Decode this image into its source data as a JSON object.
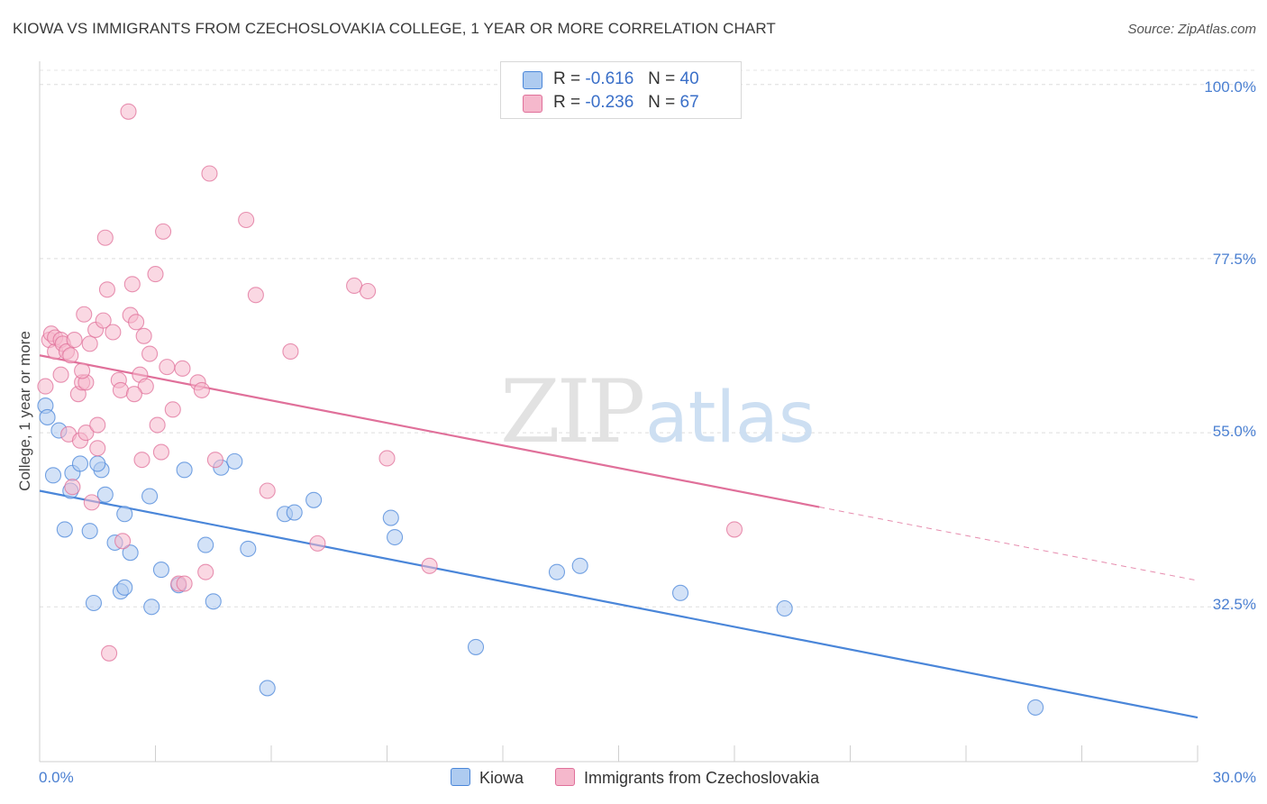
{
  "chart_data": {
    "type": "scatter",
    "title": "KIOWA VS IMMIGRANTS FROM CZECHOSLOVAKIA COLLEGE, 1 YEAR OR MORE CORRELATION CHART",
    "source": "Source: ZipAtlas.com",
    "ylabel": "College, 1 year or more",
    "xlabel": "",
    "x_unit": "%",
    "xlim": [
      0,
      30
    ],
    "ylim": [
      12.5,
      103
    ],
    "y_ticks": [
      100.0,
      77.5,
      55.0,
      32.5
    ],
    "y_tick_labels": [
      "100.0%",
      "77.5%",
      "55.0%",
      "32.5%"
    ],
    "x_tick_labels": [
      "0.0%",
      "30.0%"
    ],
    "watermark": {
      "zip": "ZIP",
      "atlas": "atlas"
    },
    "legend": [
      {
        "r_label": "R =",
        "r_value": "-0.616",
        "n_label": "N =",
        "n_value": "40"
      },
      {
        "r_label": "R =",
        "r_value": "-0.236",
        "n_label": "N =",
        "n_value": "67"
      }
    ],
    "series": [
      {
        "name": "Kiowa",
        "color": "#4a86d9",
        "fill": "#aecbf0",
        "trend": {
          "x0": 0.0,
          "y0": 47.5,
          "x1": 30.0,
          "y1": 18.2
        },
        "points": [
          [
            0.15,
            58.5
          ],
          [
            0.2,
            57.0
          ],
          [
            0.5,
            55.3
          ],
          [
            0.35,
            49.5
          ],
          [
            0.65,
            42.5
          ],
          [
            0.8,
            47.5
          ],
          [
            0.85,
            49.8
          ],
          [
            1.05,
            51.0
          ],
          [
            1.3,
            42.3
          ],
          [
            1.4,
            33.0
          ],
          [
            1.6,
            50.2
          ],
          [
            1.5,
            51.0
          ],
          [
            1.7,
            47.0
          ],
          [
            1.95,
            40.8
          ],
          [
            2.2,
            44.5
          ],
          [
            2.35,
            39.5
          ],
          [
            2.1,
            34.5
          ],
          [
            2.9,
            32.5
          ],
          [
            2.85,
            46.8
          ],
          [
            3.15,
            37.3
          ],
          [
            3.6,
            35.3
          ],
          [
            3.75,
            50.2
          ],
          [
            4.3,
            40.5
          ],
          [
            4.5,
            33.2
          ],
          [
            4.7,
            50.5
          ],
          [
            5.05,
            51.3
          ],
          [
            5.4,
            40.0
          ],
          [
            5.9,
            22.0
          ],
          [
            6.35,
            44.5
          ],
          [
            6.6,
            44.7
          ],
          [
            7.1,
            46.3
          ],
          [
            9.1,
            44.0
          ],
          [
            9.2,
            41.5
          ],
          [
            11.3,
            27.3
          ],
          [
            13.4,
            37.0
          ],
          [
            14.0,
            37.8
          ],
          [
            16.6,
            34.3
          ],
          [
            19.3,
            32.3
          ],
          [
            25.8,
            19.5
          ],
          [
            2.2,
            35.0
          ]
        ]
      },
      {
        "name": "Immigrants from Czechoslovakia",
        "color": "#e0709a",
        "fill": "#f5b8cc",
        "trend": {
          "x0": 0.0,
          "y0": 65.0,
          "x1": 20.2,
          "y1": 45.4
        },
        "trend_dash": {
          "x0": 20.2,
          "y0": 45.4,
          "x1": 30.0,
          "y1": 35.9
        },
        "points": [
          [
            0.15,
            61.0
          ],
          [
            0.25,
            67.0
          ],
          [
            0.3,
            67.8
          ],
          [
            0.4,
            65.5
          ],
          [
            0.4,
            67.3
          ],
          [
            0.55,
            67.0
          ],
          [
            0.55,
            62.5
          ],
          [
            0.6,
            66.5
          ],
          [
            0.7,
            65.5
          ],
          [
            0.75,
            54.8
          ],
          [
            0.8,
            65.0
          ],
          [
            0.85,
            48.0
          ],
          [
            0.9,
            67.0
          ],
          [
            1.0,
            60.0
          ],
          [
            1.05,
            54.0
          ],
          [
            1.1,
            61.5
          ],
          [
            1.2,
            61.5
          ],
          [
            1.1,
            63.0
          ],
          [
            1.15,
            70.3
          ],
          [
            1.2,
            55.0
          ],
          [
            1.3,
            66.5
          ],
          [
            1.35,
            46.0
          ],
          [
            1.45,
            68.3
          ],
          [
            1.5,
            56.0
          ],
          [
            1.5,
            53.0
          ],
          [
            1.65,
            69.5
          ],
          [
            1.7,
            80.2
          ],
          [
            1.75,
            73.5
          ],
          [
            1.9,
            68.0
          ],
          [
            2.05,
            61.8
          ],
          [
            2.1,
            60.5
          ],
          [
            2.15,
            41.0
          ],
          [
            2.3,
            96.5
          ],
          [
            2.35,
            70.2
          ],
          [
            2.4,
            74.2
          ],
          [
            2.5,
            69.3
          ],
          [
            2.6,
            62.5
          ],
          [
            2.65,
            51.5
          ],
          [
            2.7,
            67.5
          ],
          [
            2.75,
            61.0
          ],
          [
            2.85,
            65.2
          ],
          [
            3.0,
            75.5
          ],
          [
            3.05,
            56.0
          ],
          [
            3.15,
            52.5
          ],
          [
            3.2,
            81.0
          ],
          [
            3.3,
            63.5
          ],
          [
            3.45,
            58.0
          ],
          [
            3.6,
            35.5
          ],
          [
            3.7,
            63.3
          ],
          [
            3.75,
            35.5
          ],
          [
            4.1,
            61.5
          ],
          [
            4.3,
            37.0
          ],
          [
            4.4,
            88.5
          ],
          [
            4.55,
            51.5
          ],
          [
            5.35,
            82.5
          ],
          [
            5.6,
            72.8
          ],
          [
            5.9,
            47.5
          ],
          [
            6.5,
            65.5
          ],
          [
            7.2,
            40.7
          ],
          [
            8.15,
            74.0
          ],
          [
            8.5,
            73.3
          ],
          [
            9.0,
            51.7
          ],
          [
            10.1,
            37.8
          ],
          [
            18.0,
            42.5
          ],
          [
            1.8,
            26.5
          ],
          [
            4.2,
            60.5
          ],
          [
            2.45,
            60.0
          ]
        ]
      }
    ]
  }
}
